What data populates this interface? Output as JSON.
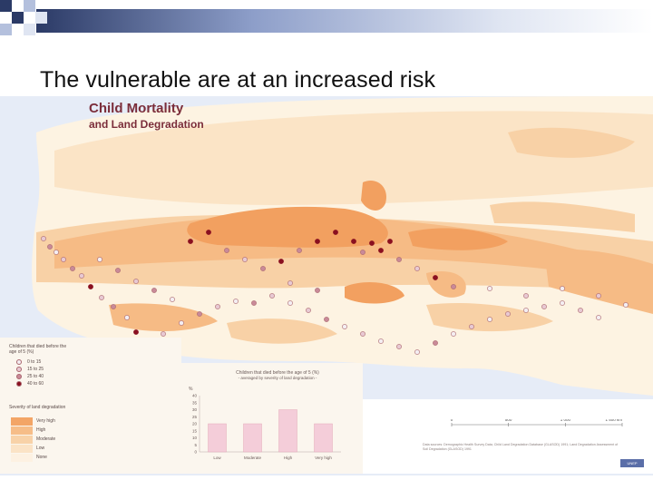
{
  "slide": {
    "title": "The vulnerable are at an increased risk"
  },
  "map": {
    "title": "Child Mortality",
    "subtitle": "and Land Degradation",
    "legend_mortality": {
      "heading": "Children that died before the age of 5 (%)",
      "items": [
        {
          "label": "0 to 15",
          "color": "#f4eef2"
        },
        {
          "label": "15 to 25",
          "color": "#e8c9d3"
        },
        {
          "label": "25 to 40",
          "color": "#c98a98"
        },
        {
          "label": "40 to 60",
          "color": "#8a1020"
        }
      ]
    },
    "legend_degradation": {
      "heading": "Severity of land degradation",
      "items": [
        {
          "label": "Very high",
          "color": "#f3a566"
        },
        {
          "label": "High",
          "color": "#f6bd88"
        },
        {
          "label": "Moderate",
          "color": "#f8d2a8"
        },
        {
          "label": "Low",
          "color": "#fbe3c6"
        },
        {
          "label": "None",
          "color": "#fdf1e2"
        }
      ]
    },
    "scale": {
      "ticks": [
        "0",
        "500",
        "1 000",
        "1 500 km"
      ]
    },
    "credit": "Data sources: Demographic Health Survey Data; Child Land Degradation Database (GLASOD) 1991; Land Degradation Assessment of Soil Degradation (GLASOD) 1991",
    "logo": "UNEP"
  },
  "chart_data": {
    "type": "bar",
    "title": "Children that died before the age of 5 (%)",
    "subtitle": "- averaged by severity of land degradation -",
    "ylabel": "%",
    "ylim": [
      0,
      40
    ],
    "yticks": [
      "0",
      "5",
      "10",
      "15",
      "20",
      "25",
      "30",
      "35",
      "40"
    ],
    "categories": [
      "Low",
      "Moderate",
      "High",
      "Very high"
    ],
    "values": [
      20,
      20,
      30,
      20
    ],
    "bar_color": "#f4cdd9"
  }
}
